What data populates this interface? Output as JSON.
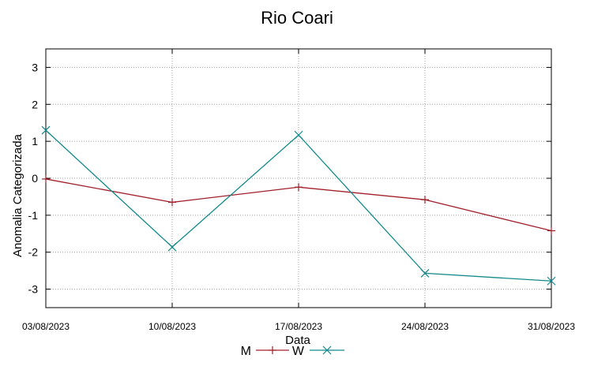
{
  "chart_data": {
    "type": "line",
    "title": "Rio Coari",
    "xlabel": "Data",
    "ylabel": "Anomalia Categorizada",
    "categories": [
      "03/08/2023",
      "10/08/2023",
      "17/08/2023",
      "24/08/2023",
      "31/08/2023"
    ],
    "yticks": [
      3,
      2,
      1,
      0,
      -1,
      -2,
      -3
    ],
    "ylim": [
      -3.5,
      3.5
    ],
    "grid": true,
    "legend_position": "bottom-center",
    "series": [
      {
        "name": "M",
        "values": [
          -0.02,
          -0.65,
          -0.24,
          -0.58,
          -1.42
        ],
        "color": "#a0202a",
        "marker": "+"
      },
      {
        "name": "W",
        "values": [
          1.3,
          -1.86,
          1.17,
          -2.57,
          -2.78
        ],
        "color": "#138a8a",
        "marker": "x"
      }
    ]
  }
}
